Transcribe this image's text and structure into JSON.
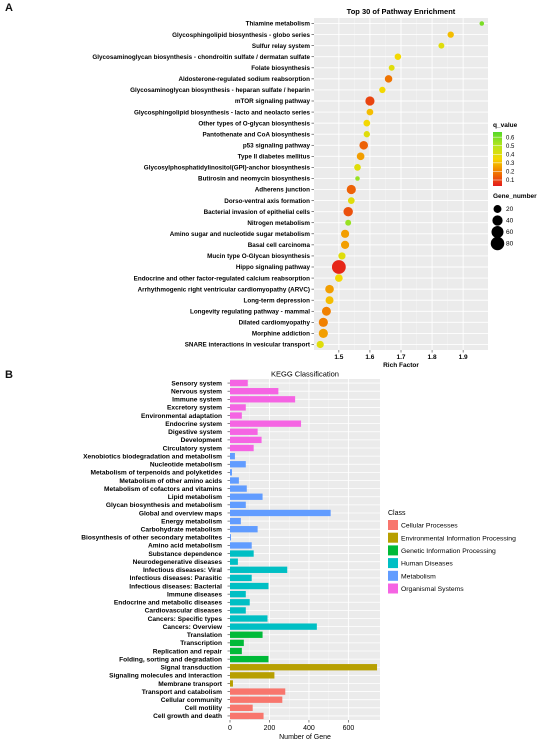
{
  "panel_labels": {
    "a": "A",
    "b": "B"
  },
  "chart_data": [
    {
      "type": "scatter",
      "title": "Top 30 of Pathway Enrichment",
      "xlabel": "Rich Factor",
      "ylabel": "",
      "xlim": [
        1.42,
        1.98
      ],
      "xticks": [
        1.5,
        1.6,
        1.7,
        1.8,
        1.9
      ],
      "grid": true,
      "legend_placement": "right",
      "color_legend": {
        "title": "q_value",
        "ticks": [
          0.6,
          0.5,
          0.4,
          0.3,
          0.2,
          0.1
        ],
        "range": [
          0.03,
          0.66
        ],
        "colors": [
          "#e41a1c",
          "#f07800",
          "#f5d800",
          "#b5e61d",
          "#55d82a"
        ]
      },
      "size_legend": {
        "title": "Gene_number",
        "values": [
          20,
          40,
          60,
          80
        ]
      },
      "points": [
        {
          "pathway": "Thiamine metabolism",
          "x": 1.96,
          "q": 0.6,
          "genes": 3
        },
        {
          "pathway": "Glycosphingolipid biosynthesis - globo series",
          "x": 1.86,
          "q": 0.3,
          "genes": 10
        },
        {
          "pathway": "Sulfur relay system",
          "x": 1.83,
          "q": 0.4,
          "genes": 8
        },
        {
          "pathway": "Glycosaminoglycan biosynthesis - chondroitin sulfate / dermatan sulfate",
          "x": 1.69,
          "q": 0.35,
          "genes": 11
        },
        {
          "pathway": "Folate biosynthesis",
          "x": 1.67,
          "q": 0.4,
          "genes": 8
        },
        {
          "pathway": "Aldosterone-regulated sodium reabsorption",
          "x": 1.66,
          "q": 0.18,
          "genes": 17
        },
        {
          "pathway": "Glycosaminoglycan biosynthesis - heparan sulfate / heparin",
          "x": 1.64,
          "q": 0.35,
          "genes": 10
        },
        {
          "pathway": "mTOR signaling pathway",
          "x": 1.6,
          "q": 0.1,
          "genes": 30
        },
        {
          "pathway": "Glycosphingolipid biosynthesis - lacto and neolacto series",
          "x": 1.6,
          "q": 0.3,
          "genes": 12
        },
        {
          "pathway": "Other types of O-glycan biosynthesis",
          "x": 1.59,
          "q": 0.35,
          "genes": 12
        },
        {
          "pathway": "Pantothenate and CoA biosynthesis",
          "x": 1.59,
          "q": 0.4,
          "genes": 10
        },
        {
          "pathway": "p53 signaling pathway",
          "x": 1.58,
          "q": 0.15,
          "genes": 25
        },
        {
          "pathway": "Type II diabetes mellitus",
          "x": 1.57,
          "q": 0.25,
          "genes": 18
        },
        {
          "pathway": "Glycosylphosphatidylinositol(GPI)-anchor biosynthesis",
          "x": 1.56,
          "q": 0.4,
          "genes": 12
        },
        {
          "pathway": "Butirosin and neomycin biosynthesis",
          "x": 1.56,
          "q": 0.55,
          "genes": 3
        },
        {
          "pathway": "Adherens junction",
          "x": 1.54,
          "q": 0.15,
          "genes": 30
        },
        {
          "pathway": "Dorso-ventral axis formation",
          "x": 1.54,
          "q": 0.4,
          "genes": 12
        },
        {
          "pathway": "Bacterial invasion of epithelial cells",
          "x": 1.53,
          "q": 0.12,
          "genes": 32
        },
        {
          "pathway": "Nitrogen metabolism",
          "x": 1.53,
          "q": 0.55,
          "genes": 8
        },
        {
          "pathway": "Amino sugar and nucleotide sugar metabolism",
          "x": 1.52,
          "q": 0.25,
          "genes": 22
        },
        {
          "pathway": "Basal cell carcinoma",
          "x": 1.52,
          "q": 0.25,
          "genes": 22
        },
        {
          "pathway": "Mucin type O-Glycan biosynthesis",
          "x": 1.51,
          "q": 0.4,
          "genes": 15
        },
        {
          "pathway": "Hippo signaling pathway",
          "x": 1.5,
          "q": 0.05,
          "genes": 85
        },
        {
          "pathway": "Endocrine and other factor-regulated calcium reabsorption",
          "x": 1.5,
          "q": 0.35,
          "genes": 18
        },
        {
          "pathway": "Arrhythmogenic right ventricular cardiomyopathy (ARVC)",
          "x": 1.47,
          "q": 0.25,
          "genes": 25
        },
        {
          "pathway": "Long-term depression",
          "x": 1.47,
          "q": 0.3,
          "genes": 20
        },
        {
          "pathway": "Longevity regulating pathway - mammal",
          "x": 1.46,
          "q": 0.2,
          "genes": 28
        },
        {
          "pathway": "Dilated cardiomyopathy",
          "x": 1.45,
          "q": 0.2,
          "genes": 30
        },
        {
          "pathway": "Morphine addiction",
          "x": 1.45,
          "q": 0.25,
          "genes": 30
        },
        {
          "pathway": "SNARE interactions in vesicular transport",
          "x": 1.44,
          "q": 0.4,
          "genes": 15
        }
      ]
    },
    {
      "type": "bar",
      "orientation": "horizontal",
      "title": "KEGG Classification",
      "xlabel": "Number of Gene",
      "ylabel": "",
      "xlim": [
        0,
        760
      ],
      "xticks": [
        0,
        200,
        400,
        600
      ],
      "grid": true,
      "legend_placement": "right",
      "legend_title": "Class",
      "classes": [
        {
          "name": "Cellular Processes",
          "color": "#f8766d"
        },
        {
          "name": "Environmental Information Processing",
          "color": "#b79f00"
        },
        {
          "name": "Genetic Information Processing",
          "color": "#00ba38"
        },
        {
          "name": "Human Diseases",
          "color": "#00bfc4"
        },
        {
          "name": "Metabolism",
          "color": "#619cff"
        },
        {
          "name": "Organismal Systems",
          "color": "#f564e3"
        }
      ],
      "bars": [
        {
          "category": "Sensory system",
          "value": 90,
          "class": 5
        },
        {
          "category": "Nervous system",
          "value": 245,
          "class": 5
        },
        {
          "category": "Immune system",
          "value": 330,
          "class": 5
        },
        {
          "category": "Excretory system",
          "value": 80,
          "class": 5
        },
        {
          "category": "Environmental adaptation",
          "value": 60,
          "class": 5
        },
        {
          "category": "Endocrine system",
          "value": 360,
          "class": 5
        },
        {
          "category": "Digestive system",
          "value": 140,
          "class": 5
        },
        {
          "category": "Development",
          "value": 160,
          "class": 5
        },
        {
          "category": "Circulatory system",
          "value": 120,
          "class": 5
        },
        {
          "category": "Xenobiotics biodegradation and metabolism",
          "value": 25,
          "class": 4
        },
        {
          "category": "Nucleotide metabolism",
          "value": 80,
          "class": 4
        },
        {
          "category": "Metabolism of terpenoids and polyketides",
          "value": 10,
          "class": 4
        },
        {
          "category": "Metabolism of other amino acids",
          "value": 45,
          "class": 4
        },
        {
          "category": "Metabolism of cofactors and vitamins",
          "value": 85,
          "class": 4
        },
        {
          "category": "Lipid metabolism",
          "value": 165,
          "class": 4
        },
        {
          "category": "Glycan biosynthesis and metabolism",
          "value": 80,
          "class": 4
        },
        {
          "category": "Global and overview maps",
          "value": 510,
          "class": 4
        },
        {
          "category": "Energy metabolism",
          "value": 55,
          "class": 4
        },
        {
          "category": "Carbohydrate metabolism",
          "value": 140,
          "class": 4
        },
        {
          "category": "Biosynthesis of other secondary metabolites",
          "value": 5,
          "class": 4
        },
        {
          "category": "Amino acid metabolism",
          "value": 110,
          "class": 4
        },
        {
          "category": "Substance dependence",
          "value": 120,
          "class": 3
        },
        {
          "category": "Neurodegenerative diseases",
          "value": 40,
          "class": 3
        },
        {
          "category": "Infectious diseases: Viral",
          "value": 290,
          "class": 3
        },
        {
          "category": "Infectious diseases: Parasitic",
          "value": 110,
          "class": 3
        },
        {
          "category": "Infectious diseases: Bacterial",
          "value": 195,
          "class": 3
        },
        {
          "category": "Immune diseases",
          "value": 80,
          "class": 3
        },
        {
          "category": "Endocrine and metabolic diseases",
          "value": 100,
          "class": 3
        },
        {
          "category": "Cardiovascular diseases",
          "value": 80,
          "class": 3
        },
        {
          "category": "Cancers: Specific types",
          "value": 190,
          "class": 3
        },
        {
          "category": "Cancers: Overview",
          "value": 440,
          "class": 3
        },
        {
          "category": "Translation",
          "value": 165,
          "class": 2
        },
        {
          "category": "Transcription",
          "value": 70,
          "class": 2
        },
        {
          "category": "Replication and repair",
          "value": 60,
          "class": 2
        },
        {
          "category": "Folding, sorting and degradation",
          "value": 195,
          "class": 2
        },
        {
          "category": "Signal transduction",
          "value": 745,
          "class": 1
        },
        {
          "category": "Signaling molecules and interaction",
          "value": 225,
          "class": 1
        },
        {
          "category": "Membrane transport",
          "value": 15,
          "class": 1
        },
        {
          "category": "Transport and catabolism",
          "value": 280,
          "class": 0
        },
        {
          "category": "Cellular community",
          "value": 265,
          "class": 0
        },
        {
          "category": "Cell motility",
          "value": 115,
          "class": 0
        },
        {
          "category": "Cell growth and death",
          "value": 170,
          "class": 0
        }
      ]
    }
  ]
}
